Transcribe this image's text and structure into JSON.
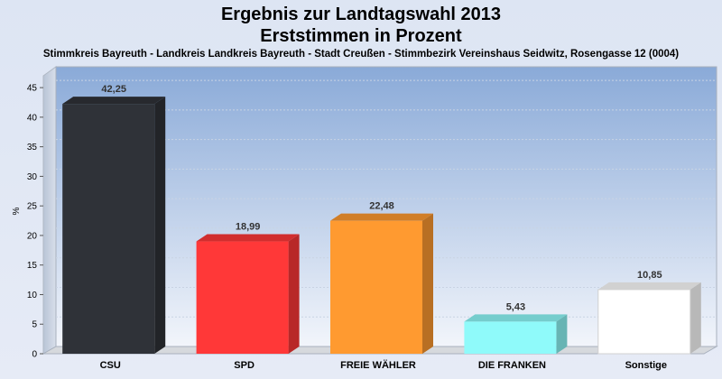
{
  "title_line1": "Ergebnis zur Landtagswahl 2013",
  "title_line2": "Erststimmen in Prozent",
  "subtitle": "Stimmkreis Bayreuth - Landkreis Landkreis Bayreuth - Stadt Creußen - Stimmbezirk Vereinshaus Seidwitz, Rosengasse 12 (0004)",
  "chart_data": {
    "type": "bar",
    "title": "Ergebnis zur Landtagswahl 2013 Erststimmen in Prozent",
    "ylabel": "%",
    "xlabel": "",
    "categories": [
      "CSU",
      "SPD",
      "FREIE WÄHLER",
      "DIE FRANKEN",
      "Sonstige"
    ],
    "values": [
      42.25,
      18.99,
      22.48,
      5.43,
      10.85
    ],
    "value_labels": [
      "42,25",
      "18,99",
      "22,48",
      "5,43",
      "10,85"
    ],
    "colors": [
      "#2f3238",
      "#ff3838",
      "#ff9a30",
      "#8ffafa",
      "#ffffff"
    ],
    "ylim": [
      0,
      47
    ],
    "yticks": [
      0,
      5,
      10,
      15,
      20,
      25,
      30,
      35,
      40,
      45
    ],
    "grid": true,
    "legend": "none"
  }
}
